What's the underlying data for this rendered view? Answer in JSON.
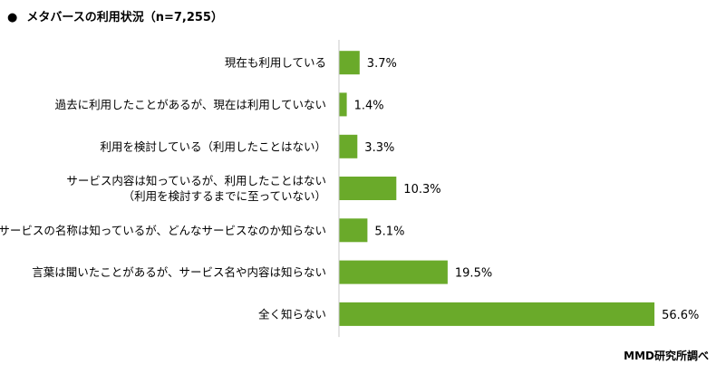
{
  "header": {
    "bullet": "●",
    "title": "メタバースの利用状況（n=7,255）"
  },
  "footer": {
    "credit": "MMD研究所調べ"
  },
  "colors": {
    "bar": "#6aaa2a",
    "axis": "#c8c8c8"
  },
  "chart_data": {
    "type": "bar",
    "orientation": "horizontal",
    "title": "メタバースの利用状況（n=7,255）",
    "value_suffix": "%",
    "xlim": [
      0,
      60
    ],
    "grid": false,
    "categories": [
      [
        "現在も利用している"
      ],
      [
        "過去に利用したことがあるが、現在は利用していない"
      ],
      [
        "利用を検討している（利用したことはない）"
      ],
      [
        "サービス内容は知っているが、利用したことはない",
        "（利用を検討するまでに至っていない）"
      ],
      [
        "サービスの名称は知っているが、どんなサービスなのか知らない"
      ],
      [
        "言葉は聞いたことがあるが、サービス名や内容は知らない"
      ],
      [
        "全く知らない"
      ]
    ],
    "values": [
      3.7,
      1.4,
      3.3,
      10.3,
      5.1,
      19.5,
      56.6
    ]
  }
}
